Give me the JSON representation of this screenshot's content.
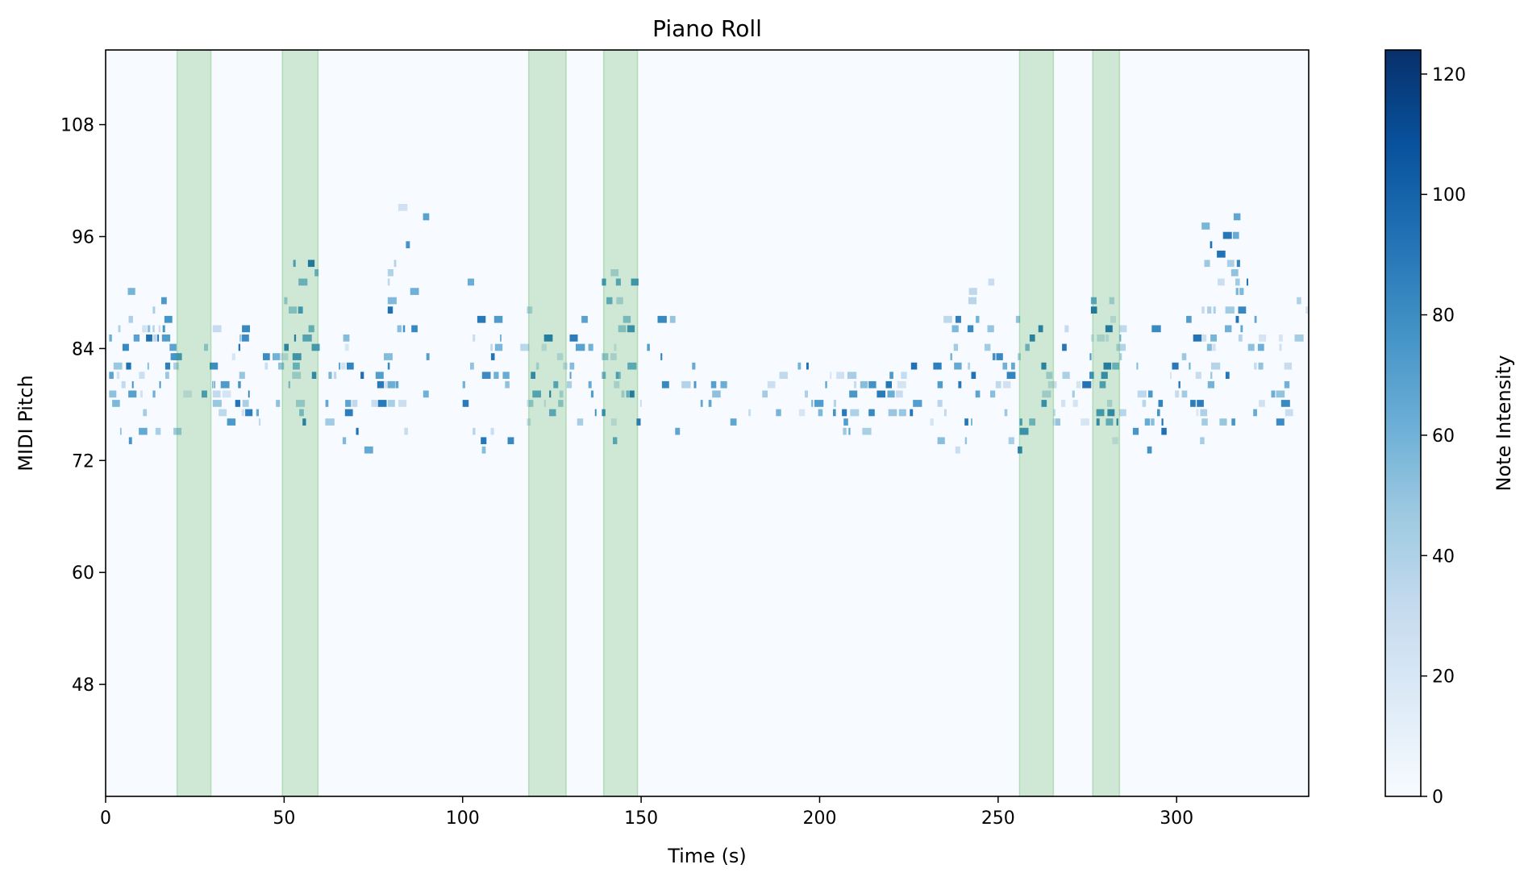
{
  "chart_data": {
    "type": "heatmap",
    "title": "Piano Roll",
    "xlabel": "Time (s)",
    "ylabel": "MIDI Pitch",
    "xlim": [
      0,
      337
    ],
    "ylim": [
      36,
      116
    ],
    "x_ticks": [
      0,
      50,
      100,
      150,
      200,
      250,
      300
    ],
    "y_ticks": [
      48,
      60,
      72,
      84,
      96,
      108
    ],
    "colormap": "Blues",
    "background_color": "#f7fbff",
    "colorbar": {
      "label": "Note Intensity",
      "range": [
        0,
        124
      ],
      "ticks": [
        0,
        20,
        40,
        60,
        80,
        100,
        120
      ]
    },
    "highlight_color": "#2ca02c",
    "highlight_regions": [
      {
        "start": 20,
        "end": 29.5
      },
      {
        "start": 49.5,
        "end": 59.5
      },
      {
        "start": 118.5,
        "end": 129
      },
      {
        "start": 139.5,
        "end": 149
      },
      {
        "start": 256,
        "end": 265.5
      },
      {
        "start": 276.5,
        "end": 284
      }
    ],
    "note_regions": [
      {
        "t0": 1,
        "t1": 19,
        "pmin": 73,
        "pmax": 91,
        "density": 0.5
      },
      {
        "t0": 19,
        "t1": 30,
        "pmin": 74,
        "pmax": 86,
        "density": 0.55
      },
      {
        "t0": 30,
        "t1": 50,
        "pmin": 74,
        "pmax": 86,
        "density": 0.45
      },
      {
        "t0": 50,
        "t1": 60,
        "pmin": 75,
        "pmax": 93,
        "density": 0.6
      },
      {
        "t0": 60,
        "t1": 79,
        "pmin": 73,
        "pmax": 85,
        "density": 0.4
      },
      {
        "t0": 79,
        "t1": 90,
        "pmin": 74,
        "pmax": 99,
        "density": 0.45
      },
      {
        "t0": 100,
        "t1": 118,
        "pmin": 73,
        "pmax": 91,
        "density": 0.4
      },
      {
        "t0": 118,
        "t1": 130,
        "pmin": 74,
        "pmax": 88,
        "density": 0.55
      },
      {
        "t0": 130,
        "t1": 139,
        "pmin": 75,
        "pmax": 87,
        "density": 0.4
      },
      {
        "t0": 139,
        "t1": 150,
        "pmin": 74,
        "pmax": 93,
        "density": 0.6
      },
      {
        "t0": 150,
        "t1": 160,
        "pmin": 75,
        "pmax": 87,
        "density": 0.4
      },
      {
        "t0": 160,
        "t1": 233,
        "pmin": 75,
        "pmax": 82,
        "density": 0.55
      },
      {
        "t0": 233,
        "t1": 256,
        "pmin": 73,
        "pmax": 91,
        "density": 0.4
      },
      {
        "t0": 256,
        "t1": 266,
        "pmin": 75,
        "pmax": 87,
        "density": 0.55
      },
      {
        "t0": 266,
        "t1": 276,
        "pmin": 75,
        "pmax": 86,
        "density": 0.45
      },
      {
        "t0": 276,
        "t1": 284,
        "pmin": 74,
        "pmax": 93,
        "density": 0.6
      },
      {
        "t0": 284,
        "t1": 307,
        "pmin": 73,
        "pmax": 87,
        "density": 0.45
      },
      {
        "t0": 307,
        "t1": 320,
        "pmin": 76,
        "pmax": 99,
        "density": 0.5
      },
      {
        "t0": 320,
        "t1": 337,
        "pmin": 75,
        "pmax": 89,
        "density": 0.45
      }
    ]
  }
}
